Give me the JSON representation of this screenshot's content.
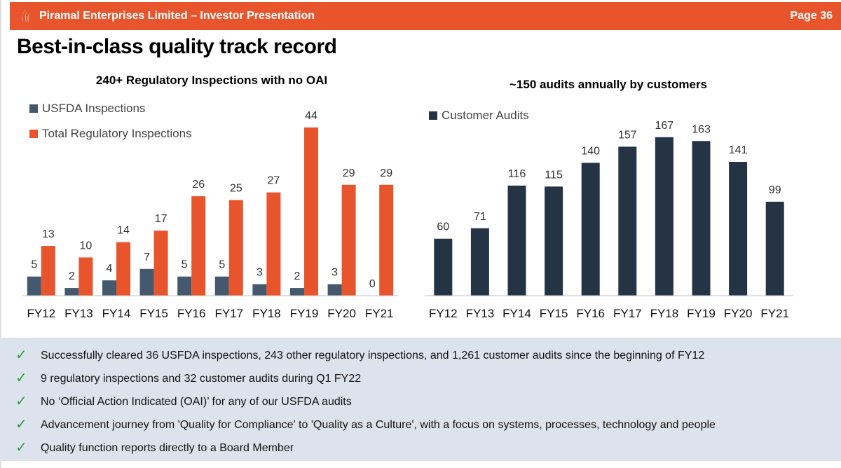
{
  "header": {
    "title": "Piramal Enterprises Limited – Investor Presentation",
    "page": "Page 36",
    "accent": "#e8552d"
  },
  "page_title": "Best-in-class quality track record",
  "chart_data": [
    {
      "type": "bar",
      "title": "240+ Regulatory Inspections with no OAI",
      "categories": [
        "FY12",
        "FY13",
        "FY14",
        "FY15",
        "FY16",
        "FY17",
        "FY18",
        "FY19",
        "FY20",
        "FY21"
      ],
      "series": [
        {
          "name": "USFDA Inspections",
          "color": "#44596e",
          "values": [
            5,
            2,
            4,
            7,
            5,
            5,
            3,
            2,
            3,
            0
          ]
        },
        {
          "name": "Total Regulatory Inspections",
          "color": "#e8552d",
          "values": [
            13,
            10,
            14,
            17,
            26,
            25,
            27,
            44,
            29,
            29
          ]
        }
      ],
      "ylim": [
        0,
        46
      ],
      "legend_position": "top-left",
      "grid": false
    },
    {
      "type": "bar",
      "title": "~150 audits annually by customers",
      "categories": [
        "FY12",
        "FY13",
        "FY14",
        "FY15",
        "FY16",
        "FY17",
        "FY18",
        "FY19",
        "FY20",
        "FY21"
      ],
      "series": [
        {
          "name": "Customer Audits",
          "color": "#253445",
          "values": [
            60,
            71,
            116,
            115,
            140,
            157,
            167,
            163,
            141,
            99
          ]
        }
      ],
      "ylim": [
        0,
        175
      ],
      "legend_position": "top-left",
      "grid": false
    }
  ],
  "bullets": [
    "Successfully cleared 36 USFDA inspections, 243 other regulatory inspections, and 1,261 customer audits since the beginning of FY12",
    "9 regulatory inspections and 32 customer audits during Q1 FY22",
    "No ‘Official Action Indicated (OAI)’ for any of our USFDA audits",
    "Advancement journey from 'Quality for Compliance' to 'Quality as a Culture', with a focus on systems, processes, technology and people",
    "Quality function reports directly to a Board Member"
  ],
  "bullet_mark": "✓"
}
